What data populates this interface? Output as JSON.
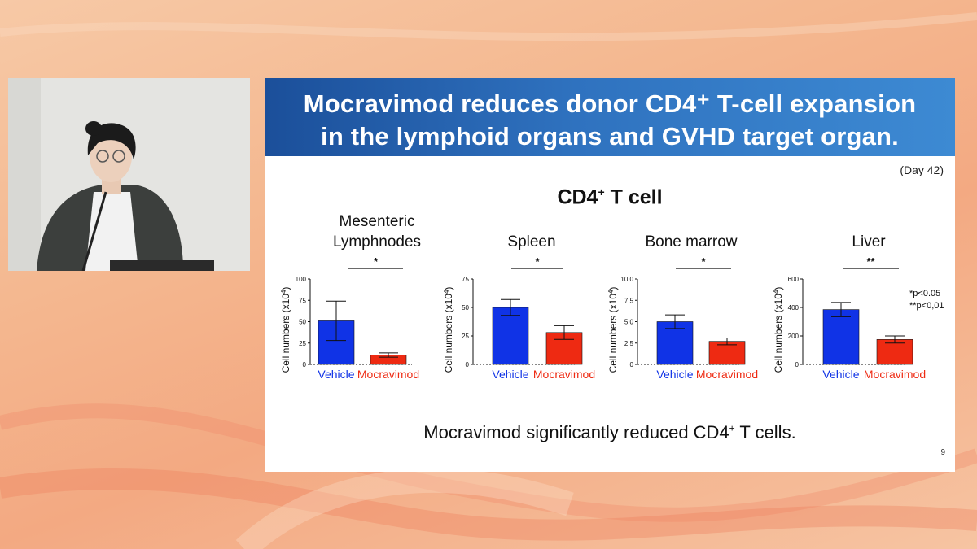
{
  "slide": {
    "title_line1": "Mocravimod reduces donor CD4⁺ T-cell expansion",
    "title_line2": "in the lymphoid organs and GVHD target organ.",
    "day_label": "(Day 42)",
    "chart_heading": "CD4",
    "chart_heading_sup": "+",
    "chart_heading_rest": " T cell",
    "footer_text": "Mocravimod significantly reduced CD4",
    "footer_sup": "+",
    "footer_rest": " T cells.",
    "page_number": "9",
    "pvalue_notes": [
      "*p<0.05",
      "**p<0,01"
    ]
  },
  "colors": {
    "vehicle": "#1033e6",
    "mocravimod": "#ee2a12",
    "header_start": "#1b4f9a",
    "header_end": "#3d8ad3"
  },
  "chart_data": [
    {
      "type": "bar",
      "title_lines": [
        "Mesenteric",
        "Lymphnodes"
      ],
      "ylabel": "Cell numbers (x10",
      "ylabel_sup": "4",
      "ylabel_end": ")",
      "categories": [
        "Vehicle",
        "Mocravimod"
      ],
      "values": [
        51,
        11
      ],
      "errors": [
        23,
        2.5
      ],
      "ylim": [
        0,
        100
      ],
      "yticks": [
        "0",
        "25",
        "50",
        "75",
        "100"
      ],
      "significance": "*"
    },
    {
      "type": "bar",
      "title_lines": [
        "Spleen"
      ],
      "ylabel": "Cell numbers (x10",
      "ylabel_sup": "4",
      "ylabel_end": ")",
      "categories": [
        "Vehicle",
        "Mocravimod"
      ],
      "values": [
        50,
        28
      ],
      "errors": [
        7,
        6
      ],
      "ylim": [
        0,
        75
      ],
      "yticks": [
        "0",
        "25",
        "50",
        "75"
      ],
      "significance": "*"
    },
    {
      "type": "bar",
      "title_lines": [
        "Bone marrow"
      ],
      "ylabel": "Cell numbers (x10",
      "ylabel_sup": "4",
      "ylabel_end": ")",
      "categories": [
        "Vehicle",
        "Mocravimod"
      ],
      "values": [
        5.0,
        2.7
      ],
      "errors": [
        0.8,
        0.4
      ],
      "ylim": [
        0,
        10.0
      ],
      "yticks": [
        "0",
        "2.5",
        "5.0",
        "7.5",
        "10.0"
      ],
      "significance": "*"
    },
    {
      "type": "bar",
      "title_lines": [
        "Liver"
      ],
      "ylabel": "Cell numbers (x10",
      "ylabel_sup": "4",
      "ylabel_end": ")",
      "categories": [
        "Vehicle",
        "Mocravimod"
      ],
      "values": [
        385,
        175
      ],
      "errors": [
        50,
        25
      ],
      "ylim": [
        0,
        600
      ],
      "yticks": [
        "0",
        "200",
        "400",
        "600"
      ],
      "significance": "**"
    }
  ]
}
